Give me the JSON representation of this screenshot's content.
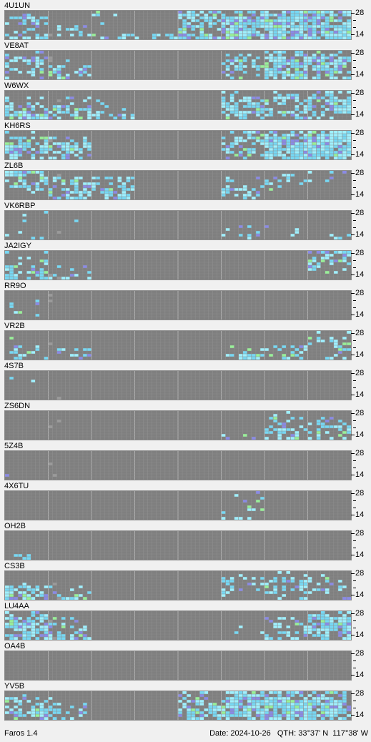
{
  "app": {
    "name": "Faros 1.4"
  },
  "status": {
    "date": "Date: 2024-10-26",
    "qth": "QTH: 33°37' N  117°38' W"
  },
  "axis": {
    "top": "28",
    "bottom": "14"
  },
  "colors": {
    "none": "#7f7f7f",
    "grid_line": "#8e8e8e",
    "major_line": "#b0b0b0",
    "blank": "#9a9a9a",
    "weak": "#8a8ae6",
    "medium": "#76d8f4",
    "strong": "#9ff0ff",
    "best": "#98f098"
  },
  "beacons": [
    {
      "callsign": "4U1UN",
      "activity": {
        "band28": [
          0.05,
          0,
          0.1,
          0.05,
          0.6,
          0.6,
          0.8,
          0.7
        ],
        "band21": [
          0.5,
          0,
          0.05,
          0,
          0.7,
          0.8,
          0.8,
          0.7
        ],
        "band18": [
          0.3,
          0.2,
          0,
          0,
          0.4,
          0.9,
          0.9,
          0.9
        ],
        "band14": [
          0.5,
          0.5,
          0.3,
          0.2,
          0.7,
          0.9,
          0.9,
          0.9
        ]
      }
    },
    {
      "callsign": "VE8AT",
      "activity": {
        "band28": [
          0.2,
          0,
          0,
          0,
          0,
          0.1,
          0.5,
          0.3
        ],
        "band21": [
          0.5,
          0.1,
          0,
          0,
          0,
          0.4,
          0.8,
          0.7
        ],
        "band18": [
          0.5,
          0.4,
          0,
          0,
          0,
          0.5,
          0.8,
          0.7
        ],
        "band14": [
          0.3,
          0.5,
          0,
          0,
          0,
          0.3,
          0.6,
          0.5
        ]
      }
    },
    {
      "callsign": "W6WX",
      "activity": {
        "band28": [
          0,
          0,
          0,
          0,
          0,
          0.2,
          0.3,
          0.3
        ],
        "band21": [
          0.2,
          0.1,
          0.1,
          0,
          0,
          0.5,
          0.5,
          0.6
        ],
        "band18": [
          0.5,
          0.5,
          0.3,
          0,
          0,
          0.8,
          0.5,
          0.7
        ],
        "band14": [
          0.6,
          0.6,
          0.4,
          0,
          0,
          0.6,
          0.3,
          0.4
        ]
      }
    },
    {
      "callsign": "KH6RS",
      "activity": {
        "band28": [
          0.2,
          0,
          0,
          0,
          0,
          0.2,
          0.6,
          0.6
        ],
        "band21": [
          0.6,
          0.4,
          0,
          0,
          0,
          0.6,
          0.9,
          0.9
        ],
        "band18": [
          0.7,
          0.6,
          0,
          0,
          0,
          0.5,
          0.9,
          0.9
        ],
        "band14": [
          0.5,
          0.5,
          0,
          0,
          0,
          0.3,
          0.7,
          0.8
        ]
      }
    },
    {
      "callsign": "ZL6B",
      "activity": {
        "band28": [
          0.6,
          0,
          0,
          0,
          0,
          0,
          0.1,
          0.1
        ],
        "band21": [
          0.5,
          0.4,
          0.3,
          0,
          0,
          0.1,
          0.2,
          0.1
        ],
        "band18": [
          0.3,
          0.6,
          0.5,
          0,
          0,
          0.4,
          0.1,
          0
        ],
        "band14": [
          0.1,
          0.5,
          0.4,
          0,
          0,
          0.3,
          0,
          0
        ]
      }
    },
    {
      "callsign": "VK6RBP",
      "activity": {
        "band28": [
          0.05,
          0,
          0,
          0,
          0,
          0,
          0,
          0
        ],
        "band21": [
          0.05,
          0.1,
          0,
          0,
          0,
          0,
          0,
          0
        ],
        "band18": [
          0.05,
          0.05,
          0,
          0,
          0,
          0.1,
          0.1,
          0
        ],
        "band14": [
          0.1,
          0,
          0,
          0,
          0,
          0.3,
          0.1,
          0.1
        ]
      }
    },
    {
      "callsign": "JA2IGY",
      "activity": {
        "band28": [
          0.05,
          0,
          0,
          0,
          0,
          0,
          0,
          0.5
        ],
        "band21": [
          0.2,
          0,
          0,
          0,
          0,
          0,
          0,
          0.5
        ],
        "band18": [
          0.5,
          0.2,
          0,
          0,
          0,
          0,
          0,
          0.2
        ],
        "band14": [
          0.6,
          0.4,
          0,
          0,
          0,
          0,
          0,
          0.1
        ]
      }
    },
    {
      "callsign": "RR9O",
      "activity": {
        "band28": [
          0,
          0,
          0,
          0,
          0,
          0,
          0,
          0
        ],
        "band21": [
          0.1,
          0,
          0,
          0,
          0,
          0,
          0,
          0
        ],
        "band18": [
          0.05,
          0,
          0,
          0,
          0,
          0,
          0,
          0
        ],
        "band14": [
          0.1,
          0,
          0,
          0,
          0,
          0,
          0,
          0
        ]
      }
    },
    {
      "callsign": "VR2B",
      "activity": {
        "band28": [
          0.05,
          0,
          0,
          0,
          0,
          0,
          0,
          0.1
        ],
        "band21": [
          0.1,
          0,
          0,
          0,
          0,
          0,
          0,
          0.3
        ],
        "band18": [
          0.4,
          0.3,
          0,
          0,
          0,
          0.2,
          0.2,
          0.3
        ],
        "band14": [
          0.1,
          0.1,
          0,
          0,
          0,
          0.5,
          0.3,
          0.3
        ]
      }
    },
    {
      "callsign": "4S7B",
      "activity": {
        "band28": [
          0,
          0,
          0,
          0,
          0,
          0,
          0,
          0
        ],
        "band21": [
          0.05,
          0,
          0,
          0,
          0,
          0,
          0,
          0
        ],
        "band18": [
          0,
          0,
          0,
          0,
          0,
          0,
          0,
          0
        ],
        "band14": [
          0,
          0,
          0,
          0,
          0,
          0,
          0,
          0
        ]
      }
    },
    {
      "callsign": "ZS6DN",
      "activity": {
        "band28": [
          0,
          0,
          0,
          0,
          0,
          0,
          0.1,
          0
        ],
        "band21": [
          0,
          0,
          0,
          0,
          0,
          0,
          0.4,
          0.3
        ],
        "band18": [
          0,
          0,
          0,
          0,
          0,
          0,
          0.6,
          0.5
        ],
        "band14": [
          0,
          0,
          0,
          0,
          0,
          0.2,
          0.4,
          0.3
        ]
      }
    },
    {
      "callsign": "5Z4B",
      "activity": {
        "band28": [
          0,
          0,
          0,
          0,
          0,
          0,
          0,
          0
        ],
        "band21": [
          0,
          0,
          0,
          0,
          0,
          0,
          0,
          0
        ],
        "band18": [
          0,
          0,
          0,
          0,
          0,
          0,
          0,
          0
        ],
        "band14": [
          0.05,
          0,
          0,
          0,
          0,
          0,
          0,
          0
        ]
      }
    },
    {
      "callsign": "4X6TU",
      "activity": {
        "band28": [
          0,
          0,
          0,
          0,
          0,
          0.1,
          0,
          0
        ],
        "band21": [
          0,
          0,
          0,
          0,
          0,
          0.1,
          0,
          0
        ],
        "band18": [
          0,
          0,
          0,
          0,
          0,
          0.2,
          0,
          0
        ],
        "band14": [
          0,
          0.05,
          0,
          0,
          0,
          0.2,
          0,
          0
        ]
      }
    },
    {
      "callsign": "OH2B",
      "activity": {
        "band28": [
          0,
          0,
          0,
          0,
          0,
          0,
          0,
          0
        ],
        "band21": [
          0,
          0,
          0,
          0,
          0,
          0,
          0,
          0
        ],
        "band18": [
          0,
          0,
          0,
          0,
          0,
          0,
          0,
          0
        ],
        "band14": [
          0.1,
          0,
          0,
          0,
          0,
          0,
          0,
          0
        ]
      }
    },
    {
      "callsign": "CS3B",
      "activity": {
        "band28": [
          0,
          0,
          0,
          0,
          0,
          0.3,
          0.3,
          0.1
        ],
        "band21": [
          0.1,
          0,
          0,
          0,
          0,
          0.3,
          0.4,
          0.2
        ],
        "band18": [
          0.6,
          0.2,
          0,
          0,
          0,
          0.2,
          0.4,
          0.3
        ],
        "band14": [
          0.7,
          0.4,
          0,
          0,
          0,
          0.1,
          0.2,
          0.2
        ]
      }
    },
    {
      "callsign": "LU4AA",
      "activity": {
        "band28": [
          0.3,
          0,
          0,
          0,
          0,
          0,
          0.1,
          0.4
        ],
        "band21": [
          0.7,
          0.2,
          0,
          0,
          0,
          0,
          0.3,
          0.7
        ],
        "band18": [
          0.8,
          0.5,
          0,
          0,
          0,
          0.1,
          0.4,
          0.8
        ],
        "band14": [
          0.7,
          0.6,
          0,
          0,
          0,
          0,
          0.3,
          0.6
        ]
      }
    },
    {
      "callsign": "OA4B",
      "activity": {
        "band28": [
          0,
          0,
          0,
          0,
          0,
          0,
          0,
          0
        ],
        "band21": [
          0,
          0,
          0,
          0,
          0,
          0,
          0,
          0
        ],
        "band18": [
          0,
          0,
          0,
          0,
          0,
          0,
          0,
          0
        ],
        "band14": [
          0,
          0,
          0,
          0,
          0,
          0,
          0,
          0
        ]
      }
    },
    {
      "callsign": "YV5B",
      "activity": {
        "band28": [
          0.1,
          0,
          0,
          0,
          0.4,
          0.7,
          0.7,
          0.6
        ],
        "band21": [
          0.4,
          0.1,
          0,
          0,
          0.5,
          0.8,
          0.8,
          0.8
        ],
        "band18": [
          0.6,
          0.4,
          0,
          0,
          0.6,
          0.8,
          0.9,
          0.8
        ],
        "band14": [
          0.5,
          0.4,
          0.1,
          0,
          0.5,
          0.7,
          0.8,
          0.8
        ]
      }
    }
  ]
}
